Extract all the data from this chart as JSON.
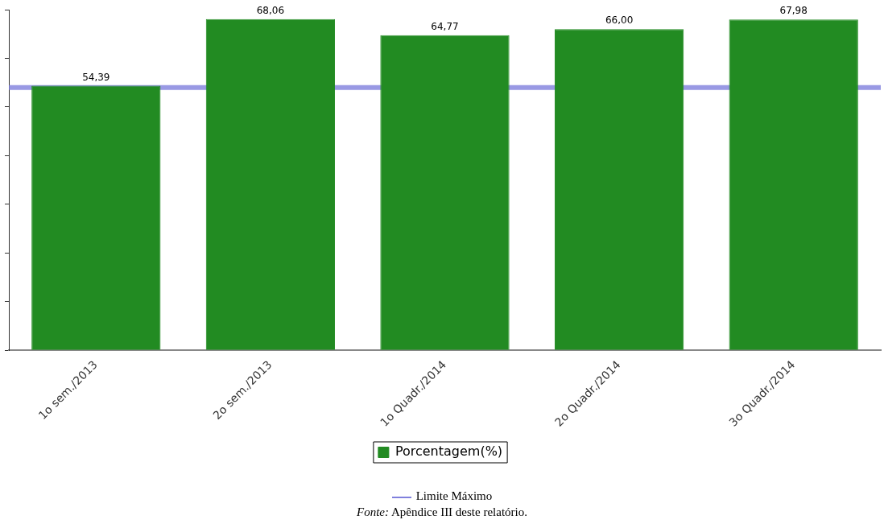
{
  "chart_data": {
    "type": "bar",
    "categories": [
      "1o sem./2013",
      "2o sem./2013",
      "1o Quadr./2014",
      "2o Quadr./2014",
      "3o Quadr./2014"
    ],
    "series": [
      {
        "name": "Porcentagem(%)",
        "color": "#228b22",
        "values": [
          54.39,
          68.06,
          64.77,
          66.0,
          67.98
        ],
        "value_labels": [
          "54,39",
          "68,06",
          "64,77",
          "66,00",
          "67,98"
        ]
      }
    ],
    "ylim": [
      0,
      70
    ],
    "yticks": [
      {
        "value": 0,
        "label": null
      },
      {
        "value": 10,
        "label": null
      },
      {
        "value": 20,
        "label": null
      },
      {
        "value": 30,
        "label": null
      },
      {
        "value": 40,
        "label": null
      },
      {
        "value": 50,
        "label": null
      },
      {
        "value": 60,
        "label": null
      },
      {
        "value": 70,
        "label": null
      }
    ],
    "tick_labels": "x",
    "grid": false,
    "legend": "bottom",
    "ref_lines": [
      {
        "axis": "y",
        "value": 54,
        "label": "Limite Máximo",
        "color": "#8080dd"
      }
    ],
    "annotations": [
      "Fonte: Apêndice III deste relatório."
    ]
  }
}
